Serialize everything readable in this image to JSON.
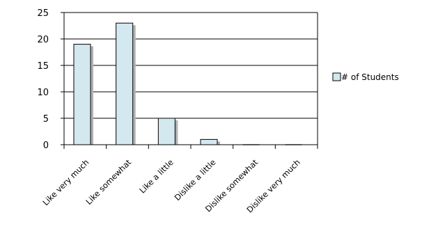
{
  "chart_data": {
    "type": "bar",
    "title": "",
    "xlabel": "",
    "ylabel": "",
    "categories": [
      "Like very much",
      "Like somewhat",
      "Like a little",
      "Dislike a little",
      "Dislike somewhat",
      "Dislike very much"
    ],
    "series": [
      {
        "name": "# of Students",
        "values": [
          19,
          23,
          5,
          1,
          0,
          0
        ]
      }
    ],
    "ylim": [
      0,
      25
    ],
    "yticks": [
      "0",
      "5",
      "10",
      "15",
      "20",
      "25"
    ],
    "grid": true,
    "legend_position": "right",
    "colors": {
      "bar_fill": "#d3e8ef",
      "bar_stroke": "#000000",
      "shadow": "#b0b0b0",
      "grid": "#000000"
    }
  }
}
